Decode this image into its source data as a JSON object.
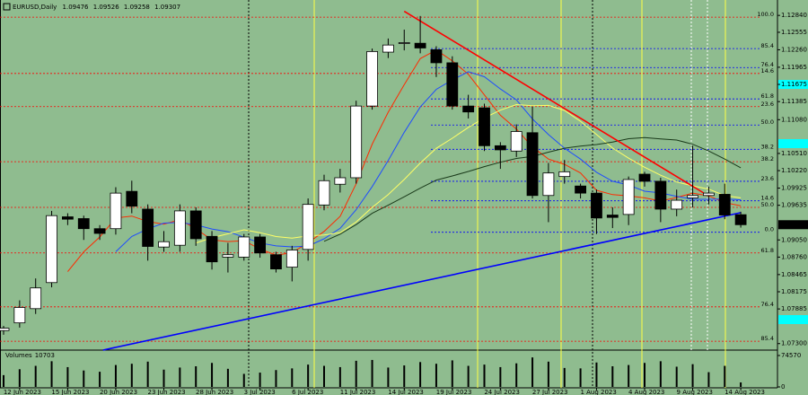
{
  "chart_data": {
    "type": "candlestick",
    "symbol": "EURUSD,Daily",
    "background": "#8fbc8f",
    "up_color": "#ffffff",
    "down_color": "#000000",
    "categories": [
      null,
      "12 Jun 2023",
      null,
      null,
      "15 Jun 2023",
      null,
      null,
      "20 Jun 2023",
      null,
      null,
      "23 Jun 2023",
      null,
      null,
      "28 Jun 2023",
      null,
      null,
      "3 Jul 2023",
      null,
      null,
      "6 Jul 2023",
      null,
      null,
      "11 Jul 2023",
      null,
      null,
      "14 Jul 2023",
      null,
      null,
      "19 Jul 2023",
      null,
      null,
      "24 Jul 2023",
      null,
      null,
      "27 Jul 2023",
      null,
      null,
      "1 Aug 2023",
      null,
      null,
      "4 Aug 2023",
      null,
      null,
      "9 Aug 2023",
      null,
      null,
      "14 Aug 2023"
    ],
    "open": [
      1.0752,
      1.0765,
      1.0789,
      1.0833,
      1.0944,
      1.0941,
      1.0924,
      1.0924,
      1.0987,
      1.0957,
      1.0893,
      1.0896,
      1.0954,
      1.0911,
      1.0876,
      1.0876,
      1.091,
      1.088,
      1.0859,
      1.0889,
      1.0964,
      1.0999,
      1.101,
      1.1131,
      1.1222,
      1.1237,
      1.1237,
      1.1226,
      1.1204,
      1.1131,
      1.1128,
      1.1064,
      1.1055,
      1.1086,
      1.098,
      1.1012,
      1.0996,
      1.0984,
      1.0947,
      1.0948,
      1.1016,
      1.1004,
      1.0957,
      1.0976,
      1.098,
      1.0982,
      1.09476
    ],
    "high": [
      1.076,
      1.0803,
      1.084,
      1.0954,
      1.095,
      1.0946,
      1.093,
      1.0994,
      1.1005,
      1.0965,
      1.092,
      1.0965,
      1.096,
      1.092,
      1.09,
      1.0915,
      1.0915,
      1.0885,
      1.0895,
      1.0975,
      1.1015,
      1.1025,
      1.114,
      1.1228,
      1.1245,
      1.126,
      1.1283,
      1.1232,
      1.1215,
      1.115,
      1.1135,
      1.107,
      1.11,
      1.113,
      1.1035,
      1.104,
      1.1,
      1.099,
      1.096,
      1.1012,
      1.102,
      1.101,
      1.099,
      1.1064,
      1.0995,
      1.1,
      1.09526
    ],
    "low": [
      1.0745,
      1.0757,
      1.078,
      1.0825,
      1.093,
      1.0905,
      1.0905,
      1.0914,
      1.095,
      1.087,
      1.0885,
      1.0885,
      1.0895,
      1.0855,
      1.085,
      1.087,
      1.0875,
      1.085,
      1.0835,
      1.087,
      1.0955,
      1.0985,
      1.1,
      1.1125,
      1.1212,
      1.1225,
      1.122,
      1.118,
      1.1125,
      1.111,
      1.1055,
      1.1025,
      1.1045,
      1.0975,
      1.0935,
      1.1,
      1.0975,
      1.0915,
      1.0925,
      1.093,
      1.0995,
      1.0935,
      1.0945,
      1.096,
      1.0965,
      1.094,
      1.09258
    ],
    "close": [
      1.0756,
      1.0791,
      1.0824,
      1.0946,
      1.094,
      1.0924,
      1.0916,
      1.0984,
      1.0962,
      1.0894,
      1.0902,
      1.0954,
      1.0907,
      1.0868,
      1.088,
      1.091,
      1.0883,
      1.0856,
      1.0888,
      1.0965,
      1.1005,
      1.101,
      1.1131,
      1.1223,
      1.1234,
      1.1238,
      1.1229,
      1.1204,
      1.1131,
      1.1121,
      1.1064,
      1.1057,
      1.1088,
      1.098,
      1.1018,
      1.102,
      1.0984,
      1.0942,
      1.0943,
      1.1007,
      1.1004,
      1.0957,
      1.0972,
      1.098,
      1.0984,
      1.0947,
      1.09307
    ],
    "ylim": [
      1.0719,
      1.131
    ],
    "yticks": [
      {
        "value": 1.1284,
        "label": "1.12840"
      },
      {
        "value": 1.12555,
        "label": "1.12555"
      },
      {
        "value": 1.1226,
        "label": "1.12260"
      },
      {
        "value": 1.11965,
        "label": "1.11965"
      },
      {
        "value": 1.11675,
        "label": "1.11675",
        "highlight": "#00ffff"
      },
      {
        "value": 1.11385,
        "label": "1.11385"
      },
      {
        "value": 1.1108,
        "label": "1.11080"
      },
      {
        "value": 1.1051,
        "label": "1.10510"
      },
      {
        "value": 1.1022,
        "label": "1.10220"
      },
      {
        "value": 1.09925,
        "label": "1.09925"
      },
      {
        "value": 1.09635,
        "label": "1.09635"
      },
      {
        "value": 1.0905,
        "label": "1.09050"
      },
      {
        "value": 1.0876,
        "label": "1.08760"
      },
      {
        "value": 1.08465,
        "label": "1.08465"
      },
      {
        "value": 1.08175,
        "label": "1.08175"
      },
      {
        "value": 1.07885,
        "label": "1.07885"
      },
      {
        "value": 1.073,
        "label": "1.07300"
      }
    ],
    "moving_averages": [
      {
        "period": 5,
        "color": "#ff2a00"
      },
      {
        "period": 8,
        "color": "#1e4cff"
      },
      {
        "period": 13,
        "color": "#ffff66"
      },
      {
        "period": 21,
        "color": "#1a3a1a"
      }
    ],
    "fib_levels": [
      {
        "label": "100.0",
        "price": 1.1281,
        "color": "#ff0000"
      },
      {
        "label": "14.6",
        "price": 1.1186,
        "color": "#ff0000"
      },
      {
        "label": "23.6",
        "price": 1.113,
        "color": "#ff0000"
      },
      {
        "label": "38.2",
        "price": 1.1037,
        "color": "#ff0000"
      },
      {
        "label": "50.0",
        "price": 1.096,
        "color": "#ff0000"
      },
      {
        "label": "61.8",
        "price": 1.0883,
        "color": "#ff0000"
      },
      {
        "label": "76.4",
        "price": 1.0792,
        "color": "#ff0000"
      },
      {
        "label": "85.4",
        "price": 1.0734,
        "color": "#ff0000"
      },
      {
        "label": "85.4",
        "price": 1.1228,
        "color": "#0000ff"
      },
      {
        "label": "76.4",
        "price": 1.1196,
        "color": "#0000ff"
      },
      {
        "label": "61.8",
        "price": 1.1143,
        "color": "#0000ff"
      },
      {
        "label": "50.0",
        "price": 1.1099,
        "color": "#0000ff"
      },
      {
        "label": "38.2",
        "price": 1.1058,
        "color": "#0000ff"
      },
      {
        "label": "23.6",
        "price": 1.1004,
        "color": "#0000ff"
      },
      {
        "label": "14.6",
        "price": 1.0971,
        "color": "#0000ff"
      },
      {
        "label": "0.0",
        "price": 1.0918,
        "color": "#0000ff"
      }
    ],
    "trendlines": [
      {
        "color": "#ff0000",
        "from": [
          25,
          1.1291
        ],
        "to": [
          43.7,
          1.0984
        ]
      },
      {
        "color": "#0000ff",
        "from": [
          6.2,
          1.0719
        ],
        "to": [
          46,
          1.0951
        ]
      }
    ],
    "volumes": {
      "name": "Volumes",
      "color": "#000000",
      "values": [
        28000,
        42000,
        50000,
        61000,
        47000,
        39000,
        36000,
        52000,
        55000,
        60000,
        41000,
        46000,
        49000,
        57000,
        43000,
        31000,
        34000,
        40000,
        44000,
        53000,
        50000,
        47000,
        62000,
        64000,
        46000,
        51000,
        59000,
        55000,
        63000,
        50000,
        53000,
        47000,
        56000,
        70000,
        60000,
        45000,
        44000,
        58000,
        49000,
        52000,
        57000,
        61000,
        48000,
        54000,
        35000,
        50000,
        10703
      ],
      "ylim": [
        0,
        74570
      ],
      "yticks": [
        74570,
        0
      ]
    }
  }
}
